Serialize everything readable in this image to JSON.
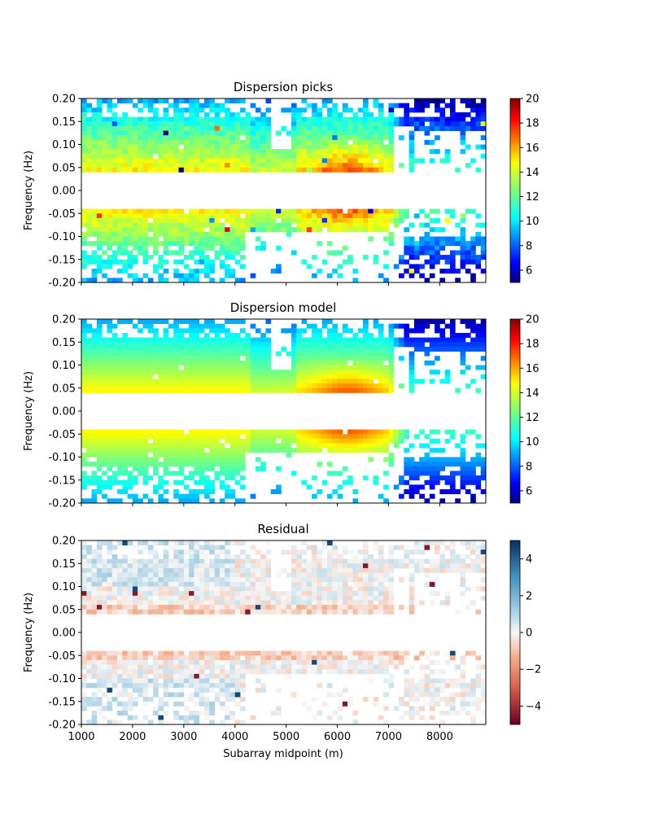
{
  "chart_data": [
    {
      "type": "heatmap",
      "title": "Dispersion picks",
      "ylabel": "Frequency (Hz)",
      "xlabel": "",
      "xlim": [
        1000,
        8900
      ],
      "ylim": [
        -0.2,
        0.2
      ],
      "yticks": [
        "0.20",
        "0.15",
        "0.10",
        "0.05",
        "0.00",
        "-0.05",
        "-0.10",
        "-0.15",
        "-0.20"
      ],
      "xticks": [],
      "colormap": "jet",
      "clim": [
        5,
        20
      ],
      "colorbar_ticks": [
        "20",
        "18",
        "16",
        "14",
        "12",
        "10",
        "8",
        "6"
      ],
      "noisy": true,
      "grid": false
    },
    {
      "type": "heatmap",
      "title": "Dispersion model",
      "ylabel": "Frequency (Hz)",
      "xlabel": "",
      "xlim": [
        1000,
        8900
      ],
      "ylim": [
        -0.2,
        0.2
      ],
      "yticks": [
        "0.20",
        "0.15",
        "0.10",
        "0.05",
        "0.00",
        "-0.05",
        "-0.10",
        "-0.15",
        "-0.20"
      ],
      "xticks": [],
      "colormap": "jet",
      "clim": [
        5,
        20
      ],
      "colorbar_ticks": [
        "20",
        "18",
        "16",
        "14",
        "12",
        "10",
        "8",
        "6"
      ],
      "noisy": false,
      "grid": false
    },
    {
      "type": "heatmap",
      "title": "Residual",
      "ylabel": "Frequency (Hz)",
      "xlabel": "Subarray midpoint (m)",
      "xlim": [
        1000,
        8900
      ],
      "ylim": [
        -0.2,
        0.2
      ],
      "yticks": [
        "0.20",
        "0.15",
        "0.10",
        "0.05",
        "0.00",
        "-0.05",
        "-0.10",
        "-0.15",
        "-0.20"
      ],
      "xticks": [
        "1000",
        "2000",
        "3000",
        "4000",
        "5000",
        "6000",
        "7000",
        "8000"
      ],
      "colormap": "RdBu",
      "clim": [
        -5,
        5
      ],
      "colorbar_ticks": [
        "4",
        "2",
        "0",
        "−2",
        "−4"
      ],
      "grid": false
    }
  ]
}
